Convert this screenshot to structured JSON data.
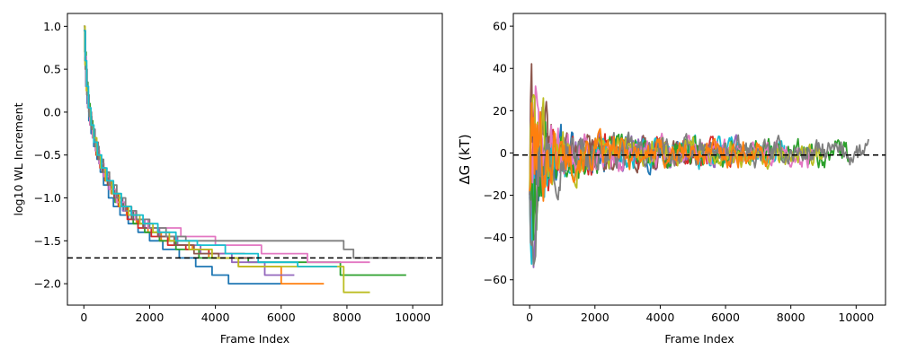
{
  "chart_data": [
    {
      "type": "line",
      "xlabel": "Frame Index",
      "ylabel": "log10 WL Increment",
      "xlim": [
        -500,
        10900
      ],
      "ylim": [
        -2.25,
        1.15
      ],
      "xticks": [
        0,
        2000,
        4000,
        6000,
        8000,
        10000
      ],
      "xtick_labels": [
        "0",
        "2000",
        "4000",
        "6000",
        "8000",
        "10000"
      ],
      "yticks": [
        1.0,
        0.5,
        0.0,
        -0.5,
        -1.0,
        -1.5,
        -2.0
      ],
      "ytick_labels": [
        "1.0",
        "0.5",
        "0.0",
        "−0.5",
        "−1.0",
        "−1.5",
        "−2.0"
      ],
      "grid": false,
      "legend": false,
      "reference_line": {
        "y": -1.7,
        "style": "dashed",
        "color": "#000000"
      },
      "line_style": "step",
      "series": [
        {
          "color": "#1f77b4",
          "x": [
            0,
            30,
            60,
            100,
            150,
            220,
            300,
            400,
            500,
            600,
            750,
            900,
            1100,
            1350,
            1650,
            2000,
            2400,
            2900,
            3400,
            3900,
            4400,
            6000
          ],
          "y": [
            1.0,
            0.6,
            0.3,
            0.1,
            -0.1,
            -0.25,
            -0.4,
            -0.55,
            -0.7,
            -0.85,
            -1.0,
            -1.1,
            -1.2,
            -1.3,
            -1.4,
            -1.5,
            -1.6,
            -1.7,
            -1.8,
            -1.9,
            -2.0,
            -2.0
          ]
        },
        {
          "color": "#ff7f0e",
          "x": [
            0,
            40,
            80,
            130,
            200,
            280,
            380,
            500,
            650,
            850,
            1050,
            1300,
            1600,
            1950,
            2350,
            2800,
            3300,
            3800,
            4700,
            6000,
            7300
          ],
          "y": [
            0.95,
            0.55,
            0.25,
            0.05,
            -0.15,
            -0.3,
            -0.5,
            -0.65,
            -0.8,
            -0.95,
            -1.1,
            -1.2,
            -1.3,
            -1.4,
            -1.5,
            -1.55,
            -1.6,
            -1.7,
            -1.8,
            -2.0,
            -2.0
          ]
        },
        {
          "color": "#2ca02c",
          "x": [
            0,
            25,
            70,
            120,
            190,
            270,
            360,
            470,
            600,
            760,
            950,
            1200,
            1500,
            1850,
            2300,
            2800,
            3500,
            5000,
            7800,
            9800
          ],
          "y": [
            1.0,
            0.7,
            0.35,
            0.1,
            -0.1,
            -0.3,
            -0.45,
            -0.6,
            -0.75,
            -0.9,
            -1.05,
            -1.15,
            -1.3,
            -1.4,
            -1.5,
            -1.6,
            -1.7,
            -1.75,
            -1.9,
            -1.9
          ]
        },
        {
          "color": "#d62728",
          "x": [
            0,
            35,
            75,
            125,
            195,
            275,
            370,
            490,
            640,
            830,
            1050,
            1320,
            1650,
            2050,
            2550,
            3100,
            3800,
            4900
          ],
          "y": [
            0.95,
            0.6,
            0.3,
            0.05,
            -0.15,
            -0.3,
            -0.5,
            -0.65,
            -0.8,
            -0.95,
            -1.1,
            -1.25,
            -1.35,
            -1.45,
            -1.55,
            -1.6,
            -1.65,
            -1.65
          ]
        },
        {
          "color": "#9467bd",
          "x": [
            0,
            30,
            65,
            115,
            180,
            260,
            350,
            460,
            590,
            750,
            940,
            1180,
            1480,
            1850,
            2300,
            2850,
            3550,
            4500,
            5500,
            6400
          ],
          "y": [
            1.0,
            0.65,
            0.3,
            0.05,
            -0.15,
            -0.3,
            -0.45,
            -0.6,
            -0.75,
            -0.9,
            -1.0,
            -1.15,
            -1.25,
            -1.35,
            -1.45,
            -1.55,
            -1.65,
            -1.75,
            -1.9,
            -1.9
          ]
        },
        {
          "color": "#8c564b",
          "x": [
            0,
            45,
            90,
            150,
            230,
            320,
            430,
            560,
            720,
            920,
            1160,
            1450,
            1800,
            2250,
            2750,
            3350,
            4100,
            5200
          ],
          "y": [
            0.95,
            0.5,
            0.2,
            0.0,
            -0.2,
            -0.35,
            -0.55,
            -0.7,
            -0.85,
            -1.0,
            -1.1,
            -1.25,
            -1.35,
            -1.45,
            -1.55,
            -1.65,
            -1.7,
            -1.7
          ]
        },
        {
          "color": "#e377c2",
          "x": [
            0,
            30,
            70,
            120,
            185,
            265,
            360,
            475,
            610,
            780,
            990,
            1250,
            1560,
            1950,
            2950,
            4000,
            5400,
            6800,
            8700
          ],
          "y": [
            1.0,
            0.65,
            0.3,
            0.05,
            -0.15,
            -0.3,
            -0.45,
            -0.6,
            -0.75,
            -0.9,
            -1.05,
            -1.15,
            -1.25,
            -1.35,
            -1.45,
            -1.55,
            -1.65,
            -1.75,
            -1.75
          ]
        },
        {
          "color": "#7f7f7f",
          "x": [
            0,
            50,
            100,
            160,
            240,
            340,
            460,
            600,
            780,
            1000,
            1270,
            1600,
            2000,
            2500,
            3100,
            3800,
            7900,
            8200,
            10400
          ],
          "y": [
            0.95,
            0.5,
            0.2,
            -0.05,
            -0.2,
            -0.4,
            -0.55,
            -0.7,
            -0.85,
            -1.0,
            -1.15,
            -1.25,
            -1.35,
            -1.45,
            -1.5,
            -1.5,
            -1.6,
            -1.7,
            -1.7
          ]
        },
        {
          "color": "#bcbd22",
          "x": [
            0,
            35,
            80,
            135,
            205,
            290,
            390,
            510,
            660,
            850,
            1080,
            1360,
            1700,
            2100,
            2600,
            3200,
            3900,
            4700,
            6800,
            7900,
            8700
          ],
          "y": [
            1.0,
            0.55,
            0.25,
            0.05,
            -0.15,
            -0.3,
            -0.5,
            -0.65,
            -0.8,
            -0.95,
            -1.1,
            -1.2,
            -1.3,
            -1.4,
            -1.5,
            -1.6,
            -1.7,
            -1.8,
            -1.8,
            -2.1,
            -2.1
          ]
        },
        {
          "color": "#17becf",
          "x": [
            0,
            40,
            85,
            140,
            215,
            305,
            410,
            540,
            700,
            900,
            1140,
            1440,
            1800,
            2250,
            2800,
            3450,
            4300,
            5300,
            6500,
            7700
          ],
          "y": [
            0.95,
            0.6,
            0.3,
            0.05,
            -0.15,
            -0.35,
            -0.5,
            -0.65,
            -0.8,
            -0.95,
            -1.1,
            -1.2,
            -1.3,
            -1.4,
            -1.5,
            -1.55,
            -1.65,
            -1.75,
            -1.8,
            -1.8
          ]
        }
      ]
    },
    {
      "type": "line",
      "xlabel": "Frame Index",
      "ylabel": "ΔG (kT)",
      "xlim": [
        -500,
        10900
      ],
      "ylim": [
        -72,
        66
      ],
      "xticks": [
        0,
        2000,
        4000,
        6000,
        8000,
        10000
      ],
      "xtick_labels": [
        "0",
        "2000",
        "4000",
        "6000",
        "8000",
        "10000"
      ],
      "yticks": [
        60,
        40,
        20,
        0,
        -20,
        -40,
        -60
      ],
      "ytick_labels": [
        "60",
        "40",
        "20",
        "0",
        "−20",
        "−40",
        "−60"
      ],
      "grid": false,
      "legend": false,
      "reference_line": {
        "y": -1,
        "style": "dashed",
        "color": "#000000"
      },
      "noisy_series": true,
      "series": [
        {
          "color": "#1f77b4",
          "x_max": 5200,
          "seed": 11
        },
        {
          "color": "#d62728",
          "x_max": 6200,
          "seed": 23
        },
        {
          "color": "#9467bd",
          "x_max": 6400,
          "seed": 37
        },
        {
          "color": "#8c564b",
          "x_max": 5000,
          "seed": 41
        },
        {
          "color": "#17becf",
          "x_max": 7800,
          "seed": 53
        },
        {
          "color": "#2ca02c",
          "x_max": 9800,
          "seed": 67
        },
        {
          "color": "#e377c2",
          "x_max": 8700,
          "seed": 71
        },
        {
          "color": "#bcbd22",
          "x_max": 9000,
          "seed": 83
        },
        {
          "color": "#7f7f7f",
          "x_max": 10400,
          "seed": 97
        },
        {
          "color": "#ff7f0e",
          "x_max": 7300,
          "seed": 101
        }
      ]
    }
  ]
}
